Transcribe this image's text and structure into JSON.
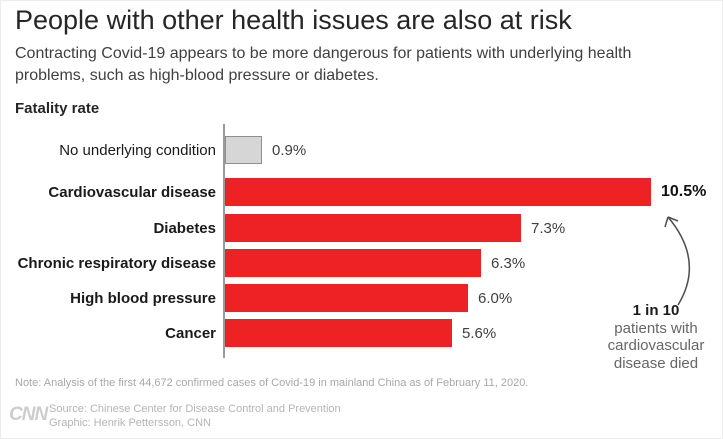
{
  "header": {
    "title": "People with other health issues are also at risk",
    "subtitle": "Contracting Covid-19 appears to be more dangerous for patients with underlying health problems, such as high-blood pressure or diabetes."
  },
  "chart_data": {
    "type": "bar",
    "orientation": "horizontal",
    "title": "Fatality rate",
    "categories": [
      "No underlying condition",
      "Cardiovascular disease",
      "Diabetes",
      "Chronic respiratory disease",
      "High blood pressure",
      "Cancer"
    ],
    "values": [
      0.9,
      10.5,
      7.3,
      6.3,
      6.0,
      5.6
    ],
    "value_labels": [
      "0.9%",
      "10.5%",
      "7.3%",
      "6.3%",
      "6.0%",
      "5.6%"
    ],
    "bar_colors": [
      "#d6d6d6",
      "#ee2224",
      "#ee2224",
      "#ee2224",
      "#ee2224",
      "#ee2224"
    ],
    "baseline_index": 0,
    "highlight_index": 1,
    "xlim": [
      0,
      10.5
    ],
    "grid": false,
    "legend": "none"
  },
  "annotation": {
    "bold_line": "1 in 10",
    "lines": [
      "patients with",
      "cardiovascular",
      "disease died"
    ],
    "arrow_icon": "curved-up-arrow"
  },
  "note": "Note: Analysis of the first 44,672 confirmed cases of Covid-19 in mainland China as of February 11, 2020.",
  "footer": {
    "logo": "CNN",
    "source": "Source: Chinese Center for Disease Control and Prevention",
    "credit": "Graphic: Henrik Pettersson, CNN"
  },
  "colors": {
    "bar_red": "#ee2224",
    "bar_gray": "#d6d6d6",
    "bar_gray_border": "#8f8f8f",
    "axis": "#9a9a9a",
    "arrow": "#4d4d4d"
  }
}
